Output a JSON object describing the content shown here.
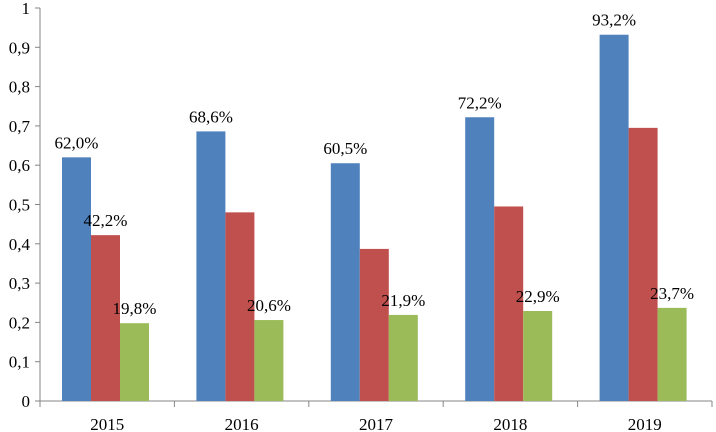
{
  "chart_data": {
    "type": "bar",
    "categories": [
      "2015",
      "2016",
      "2017",
      "2018",
      "2019"
    ],
    "series": [
      {
        "values": [
          0.62,
          0.686,
          0.605,
          0.722,
          0.932
        ],
        "labels": [
          "62,0%",
          "68,6%",
          "60,5%",
          "72,2%",
          "93,2%"
        ],
        "color": "#4f81bd"
      },
      {
        "values": [
          0.422,
          0.48,
          0.387,
          0.495,
          0.695
        ],
        "labels": [
          "42,2%",
          null,
          null,
          null,
          null
        ],
        "color": "#c0504d"
      },
      {
        "values": [
          0.198,
          0.206,
          0.219,
          0.229,
          0.237
        ],
        "labels": [
          "19,8%",
          "20,6%",
          "21,9%",
          "22,9%",
          "23,7%"
        ],
        "color": "#9bbb59"
      }
    ],
    "ylim": [
      0,
      1
    ],
    "yticks": [
      0,
      0.1,
      0.2,
      0.3,
      0.4,
      0.5,
      0.6,
      0.7,
      0.8,
      0.9,
      1
    ],
    "ytick_labels": [
      "0",
      "0,1",
      "0,2",
      "0,3",
      "0,4",
      "0,5",
      "0,6",
      "0,7",
      "0,8",
      "0,9",
      "1"
    ],
    "grid": false,
    "legend": "none"
  }
}
